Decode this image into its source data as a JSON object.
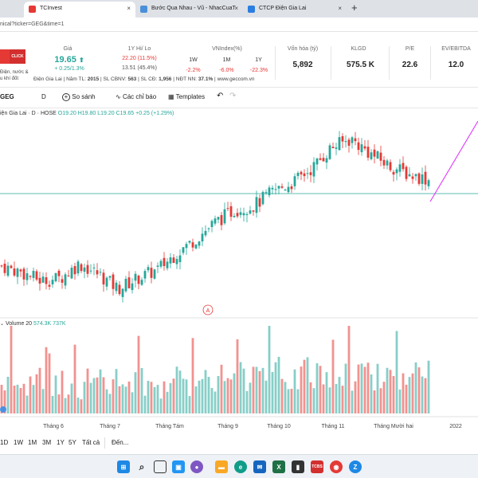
{
  "browser": {
    "tabs": [
      {
        "label": "TCInvest",
        "active": true,
        "color": "#e53935"
      },
      {
        "label": "Bước Qua Nhau - Vũ - NhacCuaT",
        "active": false,
        "color": "#4a90d9"
      },
      {
        "label": "CTCP Điện Gia Lai",
        "active": false,
        "color": "#2a7de1"
      }
    ],
    "close_glyph": "×",
    "new_tab_glyph": "+",
    "address": "nical?ticker=GEG&time=1"
  },
  "info": {
    "logo_text": "CLICK",
    "company_desc": "Điện, nước &",
    "company_desc2": "u khí đốt",
    "company_name": "Điện Gia Lai",
    "price_label": "Giá",
    "price": "19.65",
    "price_change": "+ 0.25/1.3%",
    "hilo_label": "1Y Hi/ Lo",
    "hi": "22.20 (11.5%)",
    "lo": "13.51 (45.4%)",
    "vnindex_label": "VNIndex(%)",
    "vnindex_periods": [
      "1W",
      "1M",
      "1Y"
    ],
    "vnindex_values": [
      "-2.2%",
      "-6.0%",
      "-22.3%"
    ],
    "mcap_label": "Vốn hóa (tỷ)",
    "mcap": "5,892",
    "klgd_label": "KLGD",
    "klgd": "575.5 K",
    "pe_label": "P/E",
    "pe": "22.6",
    "ev_label": "EV/EBITDA",
    "ev": "12.0",
    "meta": [
      {
        "label": "Năm TL:",
        "value": "2015"
      },
      {
        "label": "SL CBNV:",
        "value": "563"
      },
      {
        "label": "SL CĐ:",
        "value": "1,956"
      },
      {
        "label": "NĐT NN:",
        "value": "37.1%"
      }
    ],
    "website": "www.geccom.vn"
  },
  "toolbar": {
    "symbol": "GEG",
    "interval": "D",
    "compare": "So sánh",
    "indicators": "Các chỉ báo",
    "templates": "Templates"
  },
  "chart_header": {
    "name": "iện Gia Lai · D · HOSE",
    "open": "O19.20",
    "high": "H19.80",
    "low": "L19.20",
    "close": "C19.65",
    "change": "+0.25 (+1.29%)",
    "volume_label": "Volume 20",
    "volume_v1": "574.3K",
    "volume_v2": "737K",
    "marker": "A"
  },
  "chart_data": {
    "type": "candlestick",
    "x_labels": [
      "Tháng 6",
      "Tháng 7",
      "Tháng Tám",
      "Tháng 9",
      "Tháng 10",
      "Tháng 11",
      "Tháng Mười hai",
      "2022"
    ],
    "approx_close_path": [
      15.5,
      15.2,
      14.8,
      14.9,
      15.6,
      15.1,
      14.4,
      14.9,
      15.3,
      16.1,
      16.8,
      17.6,
      18.2,
      18.4,
      19.1,
      19.5,
      20.2,
      21.2,
      21.6,
      20.9,
      20.3,
      19.9,
      19.65
    ],
    "colors": {
      "up": "#26a69a",
      "down": "#e53935",
      "projection": "#e040fb"
    }
  },
  "range_bar": {
    "ranges": [
      "1D",
      "1W",
      "1M",
      "3M",
      "1Y",
      "5Y",
      "Tất cả"
    ],
    "goto": "Đến..."
  },
  "taskbar": {
    "apps": [
      {
        "icon": "windows-icon",
        "color": "#1e88e5"
      },
      {
        "icon": "search-icon",
        "color": "#333"
      },
      {
        "icon": "task-view-icon",
        "color": "#333"
      },
      {
        "icon": "widgets-icon",
        "color": "#2196f3"
      },
      {
        "icon": "chat-icon",
        "color": "#7e57c2"
      },
      {
        "icon": "file-explorer-icon",
        "color": "#f9a825"
      },
      {
        "icon": "edge-icon",
        "color": "#0f9d8a"
      },
      {
        "icon": "mail-icon",
        "color": "#1565c0"
      },
      {
        "icon": "excel-icon",
        "color": "#1e7145"
      },
      {
        "icon": "terminal-icon",
        "color": "#333"
      },
      {
        "icon": "tcbs-icon",
        "color": "#d32f2f"
      },
      {
        "icon": "chrome-icon",
        "color": "#e53935"
      },
      {
        "icon": "zalo-icon",
        "color": "#1e88e5"
      }
    ],
    "tcbs_label": "TCBS"
  }
}
